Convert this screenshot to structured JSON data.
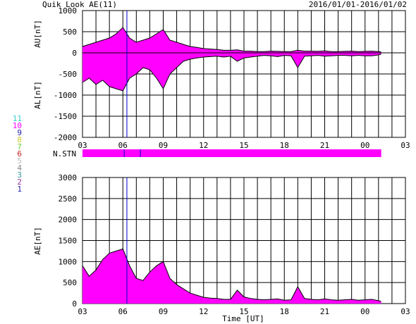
{
  "header": {
    "title": "Quik Look AE(11)",
    "date_range": "2016/01/01-2016/01/02"
  },
  "colors": {
    "fill": "#ff00ff",
    "trace": "#000000",
    "marker": "#0000cc",
    "grid": "#000000"
  },
  "station_legend": [
    {
      "label": "11",
      "color": "#33cccc"
    },
    {
      "label": "10",
      "color": "#ff00ff"
    },
    {
      "label": "9",
      "color": "#2222aa"
    },
    {
      "label": "8",
      "color": "#cccc33"
    },
    {
      "label": "7",
      "color": "#66cc33"
    },
    {
      "label": "6",
      "color": "#cc2222"
    },
    {
      "label": "5",
      "color": "#bbbbbb"
    },
    {
      "label": "4",
      "color": "#888888"
    },
    {
      "label": "3",
      "color": "#339999"
    },
    {
      "label": "2",
      "color": "#993399"
    },
    {
      "label": "1",
      "color": "#2222aa"
    }
  ],
  "nstn_label": "N.STN",
  "x_tick_labels": [
    "03",
    "06",
    "09",
    "12",
    "15",
    "18",
    "21",
    "00",
    "03"
  ],
  "xlabel": "Time [UT]",
  "chart_data": [
    {
      "type": "area",
      "name": "AU/AL",
      "ylabel_upper": "AU[nT]",
      "ylabel_lower": "AL[nT]",
      "x_range": [
        3,
        27
      ],
      "ylim": [
        -2000,
        1000
      ],
      "y_ticks": [
        1000,
        500,
        0,
        -500,
        -1000,
        -1500,
        -2000
      ],
      "x": [
        3,
        3.5,
        4,
        4.5,
        5,
        5.5,
        6,
        6.5,
        7,
        7.5,
        8,
        8.5,
        9,
        9.5,
        10,
        10.5,
        11,
        11.5,
        12,
        12.5,
        13,
        13.5,
        14,
        14.5,
        15,
        15.5,
        16,
        16.5,
        17,
        17.5,
        18,
        18.5,
        19,
        19.5,
        20,
        20.5,
        21,
        21.5,
        22,
        22.5,
        23,
        23.5,
        24,
        24.5,
        25,
        25.2
      ],
      "au": [
        150,
        200,
        250,
        300,
        350,
        450,
        600,
        350,
        250,
        300,
        350,
        450,
        550,
        300,
        250,
        200,
        150,
        130,
        100,
        90,
        80,
        60,
        60,
        70,
        40,
        40,
        30,
        30,
        40,
        35,
        30,
        30,
        60,
        40,
        40,
        35,
        45,
        30,
        30,
        35,
        40,
        30,
        35,
        40,
        30,
        20
      ],
      "al": [
        -700,
        -600,
        -750,
        -650,
        -800,
        -850,
        -900,
        -600,
        -500,
        -350,
        -400,
        -600,
        -850,
        -500,
        -350,
        -200,
        -150,
        -120,
        -100,
        -90,
        -80,
        -100,
        -80,
        -200,
        -120,
        -100,
        -80,
        -60,
        -70,
        -90,
        -60,
        -70,
        -350,
        -80,
        -70,
        -60,
        -80,
        -70,
        -60,
        -60,
        -70,
        -60,
        -70,
        -70,
        -50,
        -30
      ]
    },
    {
      "type": "area",
      "name": "AE",
      "ylabel": "AE[nT]",
      "x_range": [
        3,
        27
      ],
      "ylim": [
        0,
        3000
      ],
      "y_ticks": [
        3000,
        2500,
        2000,
        1500,
        1000,
        500,
        0
      ],
      "x": [
        3,
        3.5,
        4,
        4.5,
        5,
        5.5,
        6,
        6.5,
        7,
        7.5,
        8,
        8.5,
        9,
        9.5,
        10,
        10.5,
        11,
        11.5,
        12,
        12.5,
        13,
        13.5,
        14,
        14.5,
        15,
        15.5,
        16,
        16.5,
        17,
        17.5,
        18,
        18.5,
        19,
        19.5,
        20,
        20.5,
        21,
        21.5,
        22,
        22.5,
        23,
        23.5,
        24,
        24.5,
        25,
        25.2
      ],
      "values": [
        900,
        650,
        800,
        1050,
        1200,
        1250,
        1300,
        900,
        600,
        550,
        750,
        900,
        1000,
        600,
        450,
        350,
        250,
        200,
        150,
        130,
        120,
        100,
        100,
        320,
        160,
        120,
        100,
        90,
        100,
        110,
        80,
        90,
        400,
        120,
        100,
        90,
        110,
        90,
        80,
        90,
        100,
        80,
        90,
        100,
        70,
        50
      ]
    }
  ]
}
